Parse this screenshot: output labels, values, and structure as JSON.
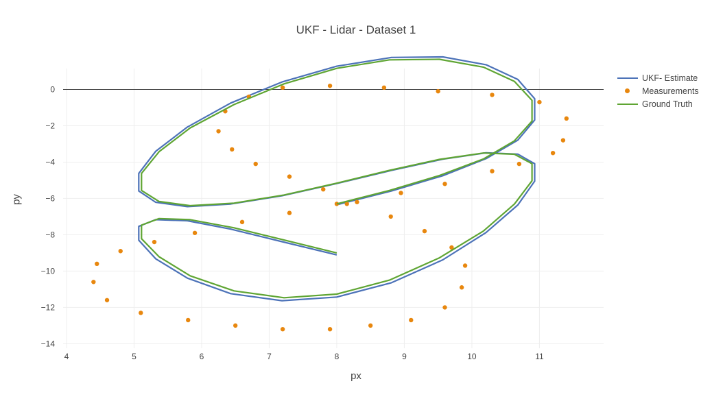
{
  "chart_data": {
    "type": "line",
    "title": "UKF - Lidar - Dataset 1",
    "xlabel": "px",
    "ylabel": "py",
    "xlim": [
      3.95,
      11.95
    ],
    "ylim": [
      -14.25,
      1.15
    ],
    "x_ticks": [
      4,
      5,
      6,
      7,
      8,
      9,
      10,
      11
    ],
    "y_ticks": [
      0,
      -2,
      -4,
      -6,
      -8,
      -10,
      -12,
      -14
    ],
    "grid": true,
    "zero_line": true,
    "legend": "top-right",
    "colors": {
      "estimate": "#4c72b8",
      "measurements": "#e8870e",
      "ground_truth": "#5fa533"
    },
    "series": [
      {
        "name": "UKF- Estimate",
        "mode": "lines",
        "color": "#4c72b8",
        "x": [
          8.0,
          8.81,
          9.57,
          10.21,
          10.68,
          10.93,
          10.93,
          10.68,
          10.21,
          9.57,
          8.81,
          8.0,
          7.19,
          6.43,
          5.79,
          5.32,
          5.07,
          5.07,
          5.32,
          5.79,
          6.43,
          7.19,
          8.0,
          8.81,
          9.57,
          10.21,
          10.68,
          10.93,
          10.93,
          10.68,
          10.21,
          9.57,
          8.81,
          8.0,
          7.19,
          6.43,
          5.79,
          5.32,
          5.07,
          5.07,
          5.32,
          5.79,
          6.43,
          7.19,
          8.0
        ],
        "y": [
          -6.35,
          -5.59,
          -4.75,
          -3.81,
          -2.79,
          -1.68,
          -0.51,
          0.55,
          1.36,
          1.79,
          1.76,
          1.28,
          0.41,
          -0.75,
          -2.07,
          -3.41,
          -4.62,
          -5.59,
          -6.21,
          -6.45,
          -6.31,
          -5.85,
          -5.18,
          -4.46,
          -3.84,
          -3.49,
          -3.56,
          -4.09,
          -5.05,
          -6.36,
          -7.88,
          -9.38,
          -10.64,
          -11.43,
          -11.63,
          -11.24,
          -10.39,
          -9.32,
          -8.3,
          -7.54,
          -7.17,
          -7.23,
          -7.69,
          -8.38,
          -9.11
        ]
      },
      {
        "name": "Measurements",
        "mode": "markers",
        "color": "#e8870e",
        "x": [
          8.15,
          8.95,
          9.6,
          10.3,
          10.7,
          11.2,
          11.35,
          11.4,
          11.0,
          10.3,
          9.5,
          8.7,
          7.9,
          7.2,
          6.7,
          6.35,
          6.25,
          6.45,
          6.8,
          7.3,
          7.8,
          8.3,
          8.8,
          9.3,
          9.7,
          9.9,
          9.85,
          9.6,
          9.1,
          8.5,
          7.9,
          7.2,
          6.5,
          5.8,
          5.1,
          4.6,
          4.4,
          4.45,
          4.8,
          5.3,
          5.9,
          6.6,
          7.3,
          8.0
        ],
        "y": [
          -6.3,
          -5.7,
          -5.2,
          -4.5,
          -4.1,
          -3.5,
          -2.8,
          -1.6,
          -0.7,
          -0.3,
          -0.1,
          0.1,
          0.2,
          0.1,
          -0.4,
          -1.2,
          -2.3,
          -3.3,
          -4.1,
          -4.8,
          -5.5,
          -6.2,
          -7.0,
          -7.8,
          -8.7,
          -9.7,
          -10.9,
          -12.0,
          -12.7,
          -13.0,
          -13.2,
          -13.2,
          -13.0,
          -12.7,
          -12.3,
          -11.6,
          -10.6,
          -9.6,
          -8.9,
          -8.4,
          -7.9,
          -7.3,
          -6.8,
          -6.3
        ]
      },
      {
        "name": "Ground Truth",
        "mode": "lines",
        "color": "#5fa533",
        "x": [
          8.0,
          8.78,
          9.52,
          10.17,
          10.63,
          10.89,
          10.89,
          10.63,
          10.17,
          9.52,
          8.78,
          8.0,
          7.22,
          6.48,
          5.83,
          5.37,
          5.11,
          5.11,
          5.37,
          5.83,
          6.48,
          7.22,
          8.0,
          8.78,
          9.52,
          10.17,
          10.63,
          10.89,
          10.89,
          10.63,
          10.17,
          9.52,
          8.78,
          8.0,
          7.22,
          6.48,
          5.83,
          5.37,
          5.11,
          5.11,
          5.37,
          5.83,
          6.48,
          7.22,
          8.0
        ],
        "y": [
          -6.3,
          -5.56,
          -4.74,
          -3.83,
          -2.83,
          -1.74,
          -0.6,
          0.44,
          1.23,
          1.66,
          1.63,
          1.16,
          0.31,
          -0.83,
          -2.12,
          -3.43,
          -4.62,
          -5.56,
          -6.17,
          -6.4,
          -6.26,
          -5.81,
          -5.16,
          -4.45,
          -3.85,
          -3.5,
          -3.57,
          -4.09,
          -5.03,
          -6.31,
          -7.8,
          -9.27,
          -10.5,
          -11.27,
          -11.47,
          -11.09,
          -10.26,
          -9.21,
          -8.22,
          -7.47,
          -7.11,
          -7.17,
          -7.62,
          -8.29,
          -9.0
        ]
      }
    ]
  }
}
